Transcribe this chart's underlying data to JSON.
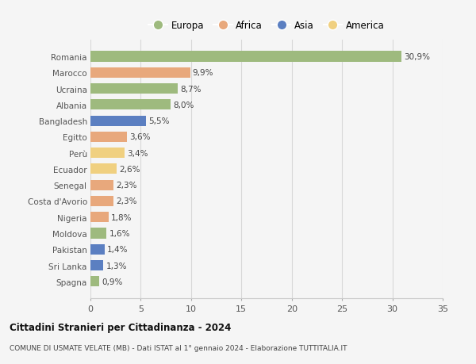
{
  "countries": [
    "Romania",
    "Marocco",
    "Ucraina",
    "Albania",
    "Bangladesh",
    "Egitto",
    "Perù",
    "Ecuador",
    "Senegal",
    "Costa d'Avorio",
    "Nigeria",
    "Moldova",
    "Pakistan",
    "Sri Lanka",
    "Spagna"
  ],
  "values": [
    30.9,
    9.9,
    8.7,
    8.0,
    5.5,
    3.6,
    3.4,
    2.6,
    2.3,
    2.3,
    1.8,
    1.6,
    1.4,
    1.3,
    0.9
  ],
  "labels": [
    "30,9%",
    "9,9%",
    "8,7%",
    "8,0%",
    "5,5%",
    "3,6%",
    "3,4%",
    "2,6%",
    "2,3%",
    "2,3%",
    "1,8%",
    "1,6%",
    "1,4%",
    "1,3%",
    "0,9%"
  ],
  "continents": [
    "Europa",
    "Africa",
    "Europa",
    "Europa",
    "Asia",
    "Africa",
    "America",
    "America",
    "Africa",
    "Africa",
    "Africa",
    "Europa",
    "Asia",
    "Asia",
    "Europa"
  ],
  "colors": {
    "Europa": "#9eba7e",
    "Africa": "#e8a87c",
    "Asia": "#5b7fc1",
    "America": "#f0d080"
  },
  "title1": "Cittadini Stranieri per Cittadinanza - 2024",
  "title2": "COMUNE DI USMATE VELATE (MB) - Dati ISTAT al 1° gennaio 2024 - Elaborazione TUTTITALIA.IT",
  "xlim": [
    0,
    35
  ],
  "xticks": [
    0,
    5,
    10,
    15,
    20,
    25,
    30,
    35
  ],
  "background_color": "#f5f5f5",
  "bar_height": 0.65,
  "grid_color": "#d8d8d8",
  "label_fontsize": 7.5,
  "ytick_fontsize": 7.5,
  "xtick_fontsize": 8
}
